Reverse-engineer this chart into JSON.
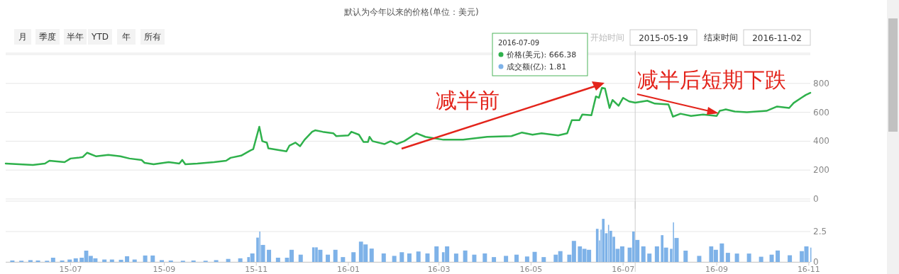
{
  "chart_data": [
    {
      "type": "line",
      "title": "默认为今年以来的价格(单位：美元)",
      "color": "#2fb14c",
      "grid": "y",
      "tick_labels": "y",
      "xlim": [
        "2015-05-19",
        "2016-11-02"
      ],
      "ylim": [
        0,
        1000
      ],
      "yticks": [
        0,
        200,
        400,
        600,
        800,
        {
          "value": 1000,
          "label": null
        }
      ],
      "x": [
        "2015-05-19",
        "2015-06-06",
        "2015-06-14",
        "2015-06-17",
        "2015-06-27",
        "2015-07-01",
        "2015-07-06",
        "2015-07-09",
        "2015-07-12",
        "2015-07-18",
        "2015-07-26",
        "2015-08-03",
        "2015-08-09",
        "2015-08-17",
        "2015-08-19",
        "2015-08-25",
        "2015-09-04",
        "2015-09-11",
        "2015-09-13",
        "2015-09-15",
        "2015-09-23",
        "2015-10-04",
        "2015-10-12",
        "2015-10-15",
        "2015-10-22",
        "2015-10-28",
        "2015-10-30",
        "2015-11-03",
        "2015-11-05",
        "2015-11-08",
        "2015-11-09",
        "2015-11-21",
        "2015-11-23",
        "2015-11-27",
        "2015-11-30",
        "2015-12-03",
        "2015-12-08",
        "2015-12-10",
        "2015-12-15",
        "2015-12-22",
        "2015-12-24",
        "2016-01-01",
        "2016-01-03",
        "2016-01-08",
        "2016-01-11",
        "2016-01-14",
        "2016-01-15",
        "2016-01-17",
        "2016-01-25",
        "2016-01-29",
        "2016-02-02",
        "2016-02-07",
        "2016-02-15",
        "2016-02-21",
        "2016-03-04",
        "2016-03-17",
        "2016-04-02",
        "2016-04-18",
        "2016-04-25",
        "2016-05-02",
        "2016-05-08",
        "2016-05-19",
        "2016-05-25",
        "2016-05-28",
        "2016-06-02",
        "2016-06-04",
        "2016-06-10",
        "2016-06-13",
        "2016-06-15",
        "2016-06-17",
        "2016-06-19",
        "2016-06-22",
        "2016-06-24",
        "2016-06-28",
        "2016-07-01",
        "2016-07-05",
        "2016-07-09",
        "2016-07-17",
        "2016-07-22",
        "2016-07-31",
        "2016-08-03",
        "2016-08-08",
        "2016-08-15",
        "2016-08-23",
        "2016-09-01",
        "2016-09-03",
        "2016-09-07",
        "2016-09-13",
        "2016-09-21",
        "2016-10-04",
        "2016-10-11",
        "2016-10-19",
        "2016-10-22",
        "2016-10-27",
        "2016-10-30",
        "2016-11-02"
      ],
      "values": [
        245,
        235,
        245,
        265,
        255,
        280,
        285,
        290,
        320,
        295,
        305,
        295,
        280,
        270,
        250,
        240,
        255,
        245,
        270,
        240,
        245,
        255,
        265,
        285,
        300,
        335,
        345,
        500,
        400,
        390,
        350,
        330,
        370,
        390,
        365,
        410,
        465,
        475,
        465,
        455,
        435,
        440,
        465,
        445,
        395,
        395,
        430,
        400,
        380,
        400,
        380,
        400,
        455,
        430,
        410,
        410,
        430,
        435,
        460,
        445,
        455,
        440,
        455,
        545,
        545,
        585,
        580,
        710,
        700,
        770,
        765,
        630,
        685,
        645,
        700,
        675,
        666.38,
        680,
        660,
        655,
        570,
        590,
        575,
        585,
        575,
        610,
        620,
        605,
        600,
        610,
        640,
        630,
        665,
        700,
        720,
        735
      ],
      "ref_lines": [
        {
          "axis": "x",
          "value": "2016-07-09",
          "color": "#cccccc"
        }
      ],
      "annotations": [
        "月",
        "季度",
        "半年",
        "YTD",
        "年",
        "所有",
        "开始时间",
        "2015-05-19",
        "结束时间",
        "2016-11-02",
        "2016-07-09",
        "价格(美元): 666.38",
        "成交额(亿): 1.81",
        "减半前",
        "减半后短期下跌"
      ]
    },
    {
      "type": "bar",
      "color": "#7eb2e8",
      "grid": "y",
      "xlim": [
        "2015-05-19",
        "2016-11-02"
      ],
      "ylim": [
        0,
        5
      ],
      "yticks": [
        0,
        2.5,
        {
          "value": 5,
          "label": null
        }
      ],
      "xticks": [
        {
          "value": "2015-07-01",
          "label": "15-07"
        },
        {
          "value": "2015-09-01",
          "label": "15-09"
        },
        {
          "value": "2015-11-01",
          "label": "15-11"
        },
        {
          "value": "2016-01-01",
          "label": "16-01"
        },
        {
          "value": "2016-03-01",
          "label": "16-03"
        },
        {
          "value": "2016-05-01",
          "label": "16-05"
        },
        {
          "value": "2016-07-01",
          "label": "16-07"
        },
        {
          "value": "2016-09-01",
          "label": "16-09"
        },
        {
          "value": "2016-11-01",
          "label": "16-11"
        }
      ],
      "x": [
        "2015-05-22",
        "2015-05-28",
        "2015-06-03",
        "2015-06-08",
        "2015-06-14",
        "2015-06-18",
        "2015-06-24",
        "2015-06-29",
        "2015-07-03",
        "2015-07-07",
        "2015-07-10",
        "2015-07-13",
        "2015-07-16",
        "2015-07-22",
        "2015-07-27",
        "2015-08-02",
        "2015-08-06",
        "2015-08-11",
        "2015-08-18",
        "2015-08-23",
        "2015-08-29",
        "2015-09-04",
        "2015-09-12",
        "2015-09-19",
        "2015-09-27",
        "2015-10-04",
        "2015-10-12",
        "2015-10-20",
        "2015-10-26",
        "2015-10-28",
        "2015-11-01",
        "2015-11-03",
        "2015-11-04",
        "2015-11-08",
        "2015-11-14",
        "2015-11-20",
        "2015-11-23",
        "2015-11-29",
        "2015-12-08",
        "2015-12-10",
        "2015-12-12",
        "2015-12-17",
        "2015-12-22",
        "2015-12-27",
        "2016-01-03",
        "2016-01-08",
        "2016-01-11",
        "2016-01-15",
        "2016-01-23",
        "2016-01-30",
        "2016-02-04",
        "2016-02-09",
        "2016-02-15",
        "2016-02-21",
        "2016-02-27",
        "2016-03-03",
        "2016-03-05",
        "2016-03-11",
        "2016-03-17",
        "2016-03-23",
        "2016-03-30",
        "2016-04-05",
        "2016-04-13",
        "2016-04-20",
        "2016-04-27",
        "2016-05-02",
        "2016-05-08",
        "2016-05-16",
        "2016-05-19",
        "2016-05-25",
        "2016-05-28",
        "2016-06-01",
        "2016-06-04",
        "2016-06-07",
        "2016-06-13",
        "2016-06-15",
        "2016-06-16",
        "2016-06-17",
        "2016-06-19",
        "2016-06-21",
        "2016-06-22",
        "2016-06-24",
        "2016-06-26",
        "2016-06-29",
        "2016-07-04",
        "2016-07-07",
        "2016-07-09",
        "2016-07-13",
        "2016-07-17",
        "2016-07-22",
        "2016-07-26",
        "2016-07-28",
        "2016-08-01",
        "2016-08-03",
        "2016-08-04",
        "2016-08-10",
        "2016-08-19",
        "2016-08-27",
        "2016-08-30",
        "2016-09-03",
        "2016-09-07",
        "2016-09-13",
        "2016-09-21",
        "2016-09-29",
        "2016-10-06",
        "2016-10-10",
        "2016-10-18",
        "2016-10-26",
        "2016-10-29",
        "2016-11-02"
      ],
      "values": [
        0.12,
        0.1,
        0.15,
        0.12,
        0.1,
        0.35,
        0.12,
        0.2,
        0.3,
        0.35,
        0.93,
        0.5,
        0.3,
        0.2,
        0.2,
        0.18,
        0.47,
        0.2,
        0.53,
        0.53,
        0.15,
        0.12,
        0.1,
        0.12,
        0.1,
        0.15,
        0.25,
        0.3,
        0.4,
        0.7,
        2.0,
        2.5,
        1.4,
        1.0,
        0.35,
        0.35,
        1.0,
        0.6,
        1.2,
        1.2,
        1.0,
        0.6,
        1.0,
        0.4,
        0.8,
        1.67,
        1.44,
        1.1,
        0.7,
        0.5,
        0.8,
        0.7,
        0.86,
        0.7,
        1.28,
        0.8,
        1.28,
        0.69,
        0.94,
        0.6,
        0.7,
        0.4,
        0.5,
        0.6,
        0.45,
        0.83,
        0.4,
        0.6,
        0.89,
        0.6,
        1.73,
        1.28,
        1.08,
        1.0,
        2.72,
        1.77,
        2.66,
        3.54,
        2.36,
        3.05,
        2.56,
        2.07,
        1.08,
        1.28,
        1.18,
        2.5,
        1.81,
        1.28,
        0.69,
        1.28,
        2.2,
        1.18,
        1.08,
        3.25,
        1.97,
        0.93,
        0.5,
        1.28,
        1.0,
        1.52,
        0.75,
        0.69,
        0.69,
        0.43,
        0.6,
        0.94,
        0.55,
        0.89,
        1.28,
        1.18
      ],
      "ref_lines": [
        {
          "axis": "x",
          "value": "2016-07-09",
          "color": "#cccccc"
        }
      ]
    }
  ]
}
